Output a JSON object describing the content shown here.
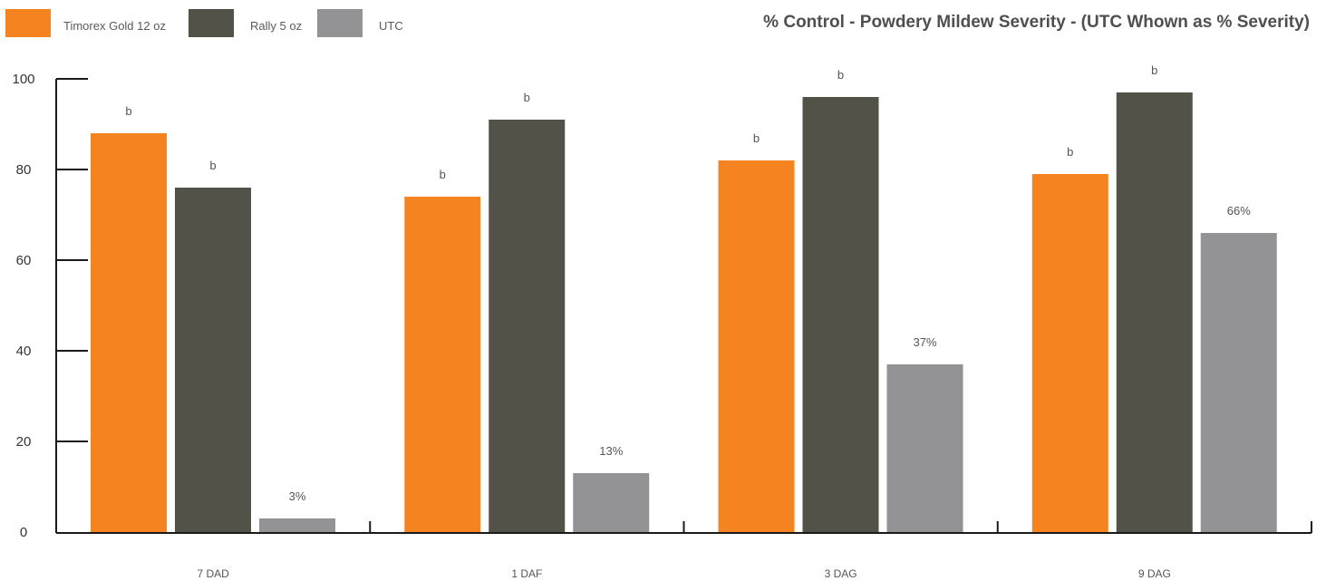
{
  "chart_data": {
    "type": "bar",
    "title": "% Control - Powdery Mildew Severity  -  (UTC Whown as % Severity)",
    "xlabel": "",
    "ylabel": "",
    "ylim": [
      0,
      100
    ],
    "yticks": [
      0,
      20,
      40,
      60,
      80,
      100
    ],
    "categories": [
      "7 DAD",
      "1 DAF",
      "3 DAG",
      "9 DAG"
    ],
    "legend_position": "top-left",
    "grid": false,
    "series": [
      {
        "name": "Timorex Gold 12 oz",
        "color": "#f58420",
        "values": [
          88,
          74,
          82,
          79
        ],
        "labels": [
          "b",
          "b",
          "b",
          "b"
        ]
      },
      {
        "name": "Rally 5 oz",
        "color": "#525248",
        "values": [
          76,
          91,
          96,
          97
        ],
        "labels": [
          "b",
          "b",
          "b",
          "b"
        ]
      },
      {
        "name": "UTC",
        "color": "#939396",
        "values": [
          3,
          13,
          37,
          66
        ],
        "labels": [
          "3%",
          "13%",
          "37%",
          "66%"
        ]
      }
    ]
  }
}
